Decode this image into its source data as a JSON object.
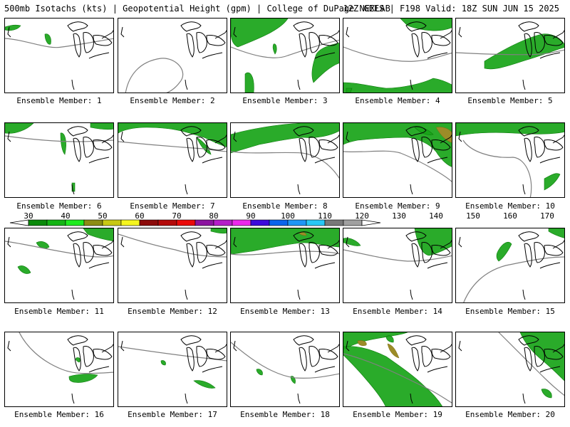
{
  "header": {
    "title_left": "500mb Isotachs (kts) | Geopotential Height (gpm) | College of DuPage NEXLAB",
    "title_right": "12Z GEFS | F198 Valid: 18Z SUN JUN 15 2025"
  },
  "colorbar": {
    "ticks": [
      "30",
      "40",
      "50",
      "60",
      "70",
      "80",
      "90",
      "100",
      "110",
      "120",
      "130",
      "140",
      "150",
      "160",
      "170"
    ],
    "colors": [
      "#0a8a0a",
      "#14b414",
      "#1eeb1e",
      "#8c8c14",
      "#c8c814",
      "#f5f51e",
      "#8c0a0a",
      "#b40a0a",
      "#eb0a0a",
      "#8c14a0",
      "#b41ec8",
      "#eb28eb",
      "#3c0adc",
      "#0a64eb",
      "#1e96f5",
      "#28c8f5",
      "#787878",
      "#a0a0a0"
    ]
  },
  "panels": [
    {
      "label": "Ensemble Member: 1"
    },
    {
      "label": "Ensemble Member: 2"
    },
    {
      "label": "Ensemble Member: 3"
    },
    {
      "label": "Ensemble Member: 4"
    },
    {
      "label": "Ensemble Member: 5"
    },
    {
      "label": "Ensemble Member: 6"
    },
    {
      "label": "Ensemble Member: 7"
    },
    {
      "label": "Ensemble Member: 8"
    },
    {
      "label": "Ensemble Member: 9"
    },
    {
      "label": "Ensemble Member: 10"
    },
    {
      "label": "Ensemble Member: 11"
    },
    {
      "label": "Ensemble Member: 12"
    },
    {
      "label": "Ensemble Member: 13"
    },
    {
      "label": "Ensemble Member: 14"
    },
    {
      "label": "Ensemble Member: 15"
    },
    {
      "label": "Ensemble Member: 16"
    },
    {
      "label": "Ensemble Member: 17"
    },
    {
      "label": "Ensemble Member: 18"
    },
    {
      "label": "Ensemble Member: 19"
    },
    {
      "label": "Ensemble Member: 20"
    }
  ]
}
